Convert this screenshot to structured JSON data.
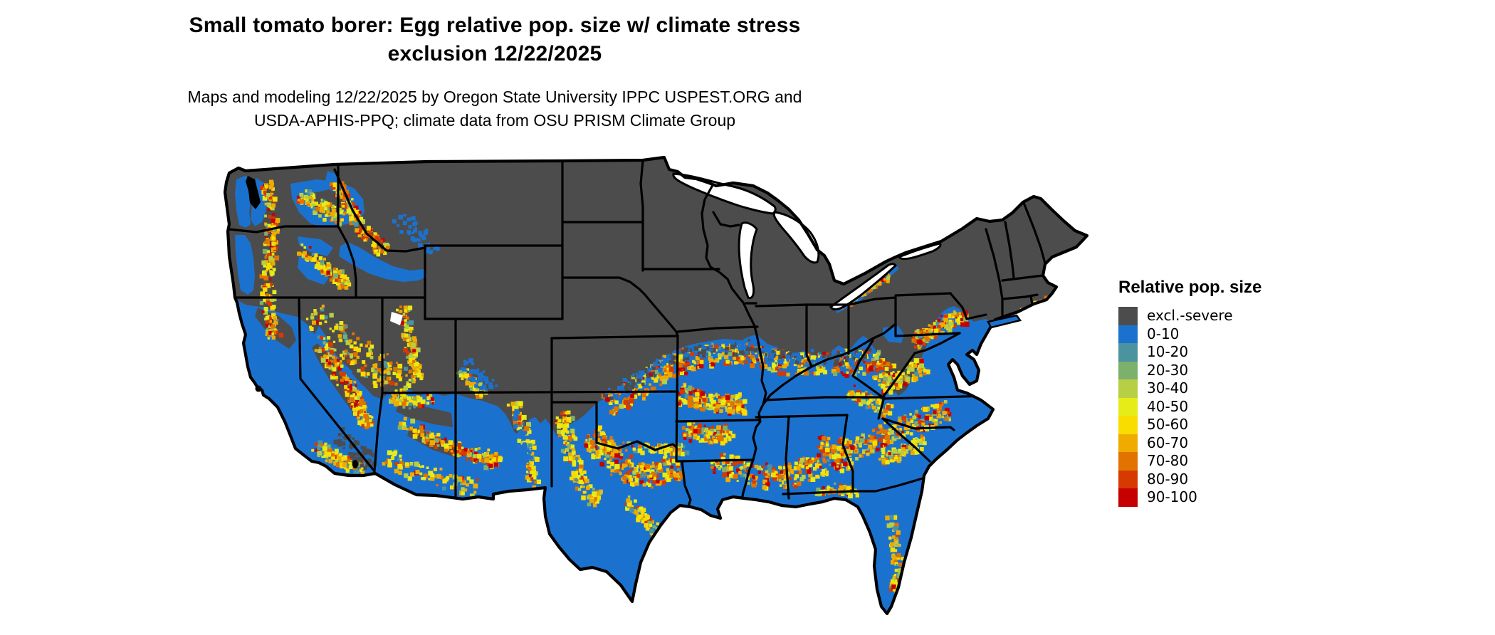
{
  "title": {
    "line1": "Small tomato borer: Egg relative pop. size w/ climate stress",
    "line2": "exclusion 12/22/2025"
  },
  "subtitle": {
    "line1": "Maps and modeling 12/22/2025 by Oregon State University IPPC USPEST.ORG and",
    "line2": "USDA-APHIS-PPQ; climate data from OSU PRISM Climate Group"
  },
  "legend": {
    "title": "Relative pop. size",
    "items": [
      {
        "label": "excl.-severe",
        "color": "#4C4C4C"
      },
      {
        "label": "0-10",
        "color": "#1B72CE"
      },
      {
        "label": "10-20",
        "color": "#4C93A0"
      },
      {
        "label": "20-30",
        "color": "#7CB06D"
      },
      {
        "label": "30-40",
        "color": "#B6CF45"
      },
      {
        "label": "40-50",
        "color": "#E6EC17"
      },
      {
        "label": "50-60",
        "color": "#F8DE00"
      },
      {
        "label": "60-70",
        "color": "#EFAB00"
      },
      {
        "label": "70-80",
        "color": "#E17300"
      },
      {
        "label": "80-90",
        "color": "#D63A00"
      },
      {
        "label": "90-100",
        "color": "#C60000"
      }
    ]
  },
  "map": {
    "depicts": "Contiguous United States raster of egg relative population size with climate stress exclusion",
    "excluded_color": "#4C4C4C",
    "suitable_low_color": "#1B72CE",
    "state_border_color": "#000000",
    "water_color": "#FFFFFF",
    "background_color": "#FFFFFF"
  }
}
